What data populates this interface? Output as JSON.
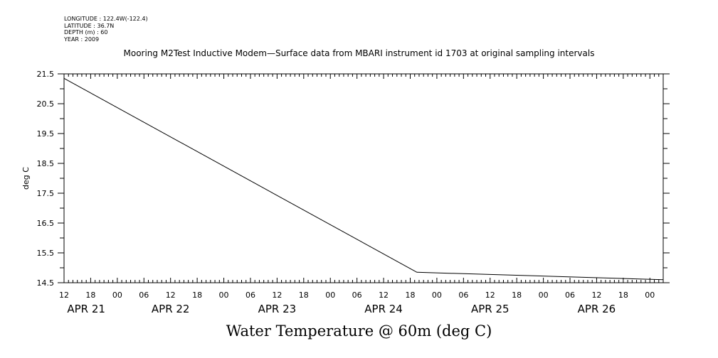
{
  "header_lines": {
    "longitude": "LONGITUDE : 122.4W(-122.4)",
    "latitude": "LATITUDE : 36.7N",
    "depth": "DEPTH (m) : 60",
    "year": "YEAR : 2009"
  },
  "chart_data": {
    "type": "line",
    "title": "Mooring M2Test Inductive Modem—Surface data from MBARI instrument id 1703 at original sampling intervals",
    "xlabel": "Water Temperature @ 60m (deg C)",
    "ylabel": "deg C",
    "x_unit": "hours from 2009-04-21 00:00",
    "xlim": [
      12,
      147
    ],
    "ylim": [
      14.5,
      21.5
    ],
    "y_ticks": [
      "21.5",
      "20.5",
      "19.5",
      "18.5",
      "17.5",
      "16.5",
      "15.5",
      "14.5"
    ],
    "x_tick_labels": [
      {
        "h": 12,
        "label": "12"
      },
      {
        "h": 18,
        "label": "18"
      },
      {
        "h": 24,
        "label": "00"
      },
      {
        "h": 30,
        "label": "06"
      },
      {
        "h": 36,
        "label": "12"
      },
      {
        "h": 42,
        "label": "18"
      },
      {
        "h": 48,
        "label": "00"
      },
      {
        "h": 54,
        "label": "06"
      },
      {
        "h": 60,
        "label": "12"
      },
      {
        "h": 66,
        "label": "18"
      },
      {
        "h": 72,
        "label": "00"
      },
      {
        "h": 78,
        "label": "06"
      },
      {
        "h": 84,
        "label": "12"
      },
      {
        "h": 90,
        "label": "18"
      },
      {
        "h": 96,
        "label": "00"
      },
      {
        "h": 102,
        "label": "06"
      },
      {
        "h": 108,
        "label": "12"
      },
      {
        "h": 114,
        "label": "18"
      },
      {
        "h": 120,
        "label": "00"
      },
      {
        "h": 126,
        "label": "06"
      },
      {
        "h": 132,
        "label": "12"
      },
      {
        "h": 138,
        "label": "18"
      },
      {
        "h": 144,
        "label": "00"
      }
    ],
    "day_labels": [
      {
        "h": 17,
        "label": "APR 21"
      },
      {
        "h": 36,
        "label": "APR 22"
      },
      {
        "h": 60,
        "label": "APR 23"
      },
      {
        "h": 84,
        "label": "APR 24"
      },
      {
        "h": 108,
        "label": "APR 25"
      },
      {
        "h": 132,
        "label": "APR 26"
      }
    ],
    "series": [
      {
        "x": [
          12,
          91.5,
          147
        ],
        "y": [
          21.35,
          14.85,
          14.6
        ]
      }
    ]
  }
}
